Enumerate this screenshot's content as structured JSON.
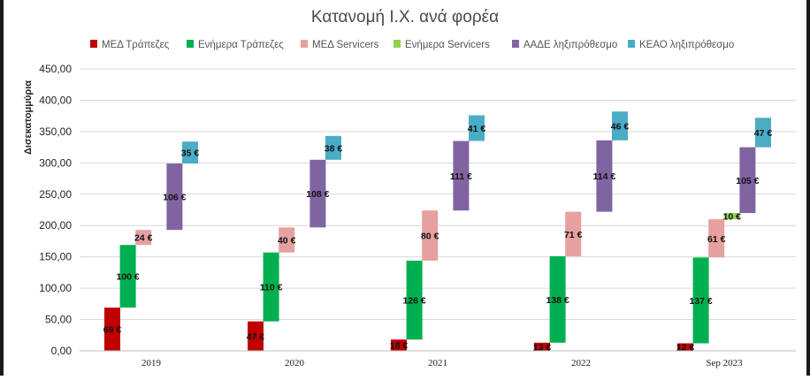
{
  "chart_data": {
    "type": "bar",
    "subtype": "floating-stacked (waterfall) bars",
    "title": "Κατανομή Ι.Χ. ανά φορέα",
    "xlabel": "",
    "ylabel": "Δισεκατομμύρια",
    "ylim": [
      0,
      450
    ],
    "yticks": [
      "0,00",
      "50,00",
      "100,00",
      "150,00",
      "200,00",
      "250,00",
      "300,00",
      "350,00",
      "400,00",
      "450,00"
    ],
    "grid": true,
    "legend_position": "top",
    "categories": [
      "2019",
      "2020",
      "2021",
      "2022",
      "Sep 2023"
    ],
    "series": [
      {
        "name": "ΜΕΔ Τράπεζες",
        "color": "#c00000",
        "values": [
          69,
          47,
          18,
          13,
          12
        ],
        "labels": [
          "69 €",
          "47 €",
          "18 €",
          "13 €",
          "12 €"
        ]
      },
      {
        "name": "Ενήμερα Τράπεζες",
        "color": "#00b050",
        "values": [
          100,
          110,
          126,
          138,
          137
        ],
        "labels": [
          "100 €",
          "110 €",
          "126 €",
          "138 €",
          "137 €"
        ]
      },
      {
        "name": "ΜΕΔ Servicers",
        "color": "#e6a0a0",
        "values": [
          24,
          40,
          80,
          71,
          61
        ],
        "labels": [
          "24 €",
          "40 €",
          "80 €",
          "71 €",
          "61 €"
        ]
      },
      {
        "name": "Ενήμερα Servicers",
        "color": "#92d050",
        "values": [
          0,
          0,
          0,
          0,
          10
        ],
        "labels": [
          "",
          "",
          "",
          "",
          "10 €"
        ]
      },
      {
        "name": "ΑΑΔΕ ληξιπρόθεσμο",
        "color": "#8064a2",
        "values": [
          106,
          108,
          111,
          114,
          105
        ],
        "labels": [
          "106 €",
          "108 €",
          "111 €",
          "114 €",
          "105 €"
        ]
      },
      {
        "name": "ΚΕΑΟ ληξιπρόθεσμο",
        "color": "#4bacc6",
        "values": [
          35,
          38,
          41,
          46,
          47
        ],
        "labels": [
          "35 €",
          "38 €",
          "41 €",
          "46 €",
          "47 €"
        ]
      }
    ]
  }
}
